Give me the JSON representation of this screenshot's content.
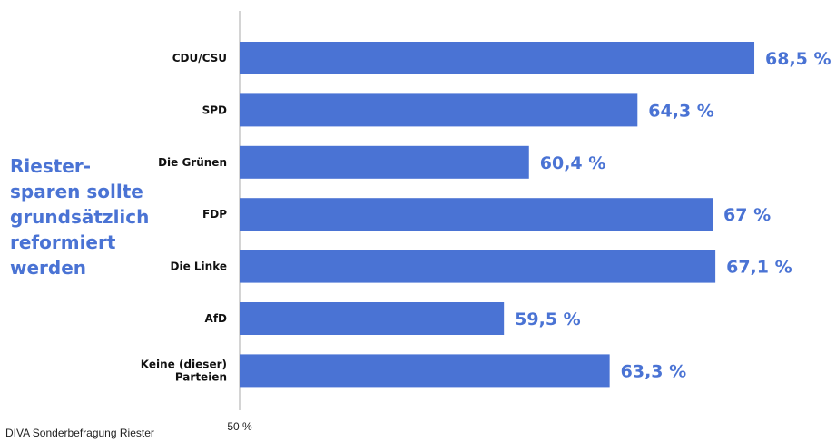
{
  "title_lines": [
    "Riester-",
    "sparen sollte",
    "grundsätzlich",
    "reformiert",
    "werden"
  ],
  "source": "DIVA Sonderbefragung Riester",
  "colors": {
    "bar": "#4a73d4",
    "value_label": "#4a73d4",
    "category_label": "#111111",
    "axis": "#aaaaaa"
  },
  "chart_data": {
    "type": "bar",
    "orientation": "horizontal",
    "categories": [
      [
        "CDU/CSU"
      ],
      [
        "SPD"
      ],
      [
        "Die Grünen"
      ],
      [
        "FDP"
      ],
      [
        "Die Linke"
      ],
      [
        "AfD"
      ],
      [
        "Keine (dieser)",
        "Parteien"
      ]
    ],
    "values": [
      68.5,
      64.3,
      60.4,
      67,
      67.1,
      59.5,
      63.3
    ],
    "value_labels": [
      "68,5 %",
      "64,3 %",
      "60,4 %",
      "67 %",
      "67,1 %",
      "59,5 %",
      "63,3 %"
    ],
    "axis_tick_label": "50 %",
    "xlim": [
      50,
      69.5
    ],
    "title": "Riester- sparen sollte grundsätzlich reformiert werden"
  }
}
